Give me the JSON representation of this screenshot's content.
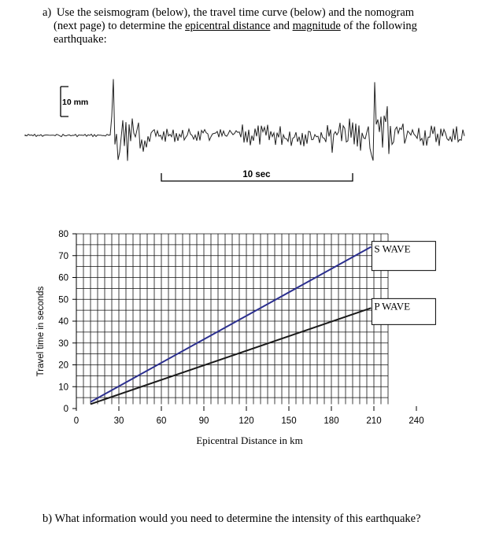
{
  "question_a": {
    "label": "a)",
    "text_1": "Use the seismogram (below), the travel time curve (below) and the nomogram",
    "text_2": "(next page) to determine the ",
    "underline_1": "epicentral distance",
    "text_3": " and ",
    "underline_2": "magnitude",
    "text_4": " of the following",
    "text_5": "earthquake:"
  },
  "seismogram": {
    "amplitude_scale_label": "10 mm",
    "time_scale_label": "10 sec"
  },
  "chart_data": {
    "type": "line",
    "xlabel": "Epicentral Distance in km",
    "ylabel": "Travel time in seconds",
    "xlim": [
      0,
      240
    ],
    "ylim": [
      0,
      80
    ],
    "x_ticks": [
      0,
      30,
      60,
      90,
      120,
      150,
      180,
      210,
      240
    ],
    "y_ticks": [
      0,
      10,
      20,
      30,
      40,
      50,
      60,
      70,
      80
    ],
    "grid": true,
    "series": [
      {
        "name": "S WAVE",
        "color": "#2b2f8f",
        "x": [
          10,
          208
        ],
        "y": [
          3,
          74
        ]
      },
      {
        "name": "P WAVE",
        "color": "#1a1a1a",
        "x": [
          10,
          208
        ],
        "y": [
          2,
          46
        ]
      }
    ]
  },
  "question_b": {
    "label": "b)",
    "text": "What information would you need to determine the intensity of this earthquake?"
  }
}
